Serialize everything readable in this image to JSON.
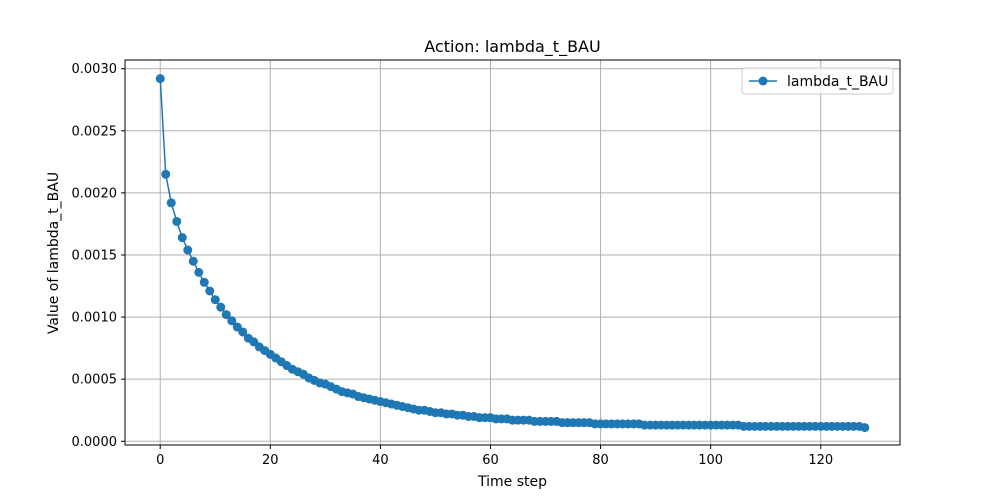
{
  "figure": {
    "title": "Action: lambda_t_BAU",
    "xlabel": "Time step",
    "ylabel": "Value of lambda_t_BAU",
    "legend_label": "lambda_t_BAU"
  },
  "chart_data": {
    "type": "line",
    "title": "Action: lambda_t_BAU",
    "xlabel": "Time step",
    "ylabel": "Value of lambda_t_BAU",
    "xlim": [
      -6.4,
      134.4
    ],
    "ylim": [
      -3e-05,
      0.00307
    ],
    "xticks": [
      0,
      20,
      40,
      60,
      80,
      100,
      120
    ],
    "xtick_labels": [
      "0",
      "20",
      "40",
      "60",
      "80",
      "100",
      "120"
    ],
    "yticks": [
      0.0,
      0.0005,
      0.001,
      0.0015,
      0.002,
      0.0025,
      0.003
    ],
    "ytick_labels": [
      "0.0000",
      "0.0005",
      "0.0010",
      "0.0015",
      "0.0020",
      "0.0025",
      "0.0030"
    ],
    "grid": true,
    "legend_position": "upper right",
    "series": [
      {
        "name": "lambda_t_BAU",
        "color": "#1f77b4",
        "marker": "circle",
        "x_start": 0,
        "x_step": 1,
        "values": [
          0.00292,
          0.00215,
          0.00192,
          0.00177,
          0.00164,
          0.00154,
          0.00145,
          0.00136,
          0.00128,
          0.00121,
          0.00114,
          0.00108,
          0.00102,
          0.00097,
          0.00092,
          0.00088,
          0.00083,
          0.0008,
          0.00076,
          0.00073,
          0.0007,
          0.00067,
          0.00064,
          0.00061,
          0.00058,
          0.00056,
          0.00054,
          0.00051,
          0.00049,
          0.00047,
          0.00046,
          0.00044,
          0.00042,
          0.0004,
          0.00039,
          0.00038,
          0.00036,
          0.00035,
          0.00034,
          0.00033,
          0.00032,
          0.00031,
          0.0003,
          0.00029,
          0.00028,
          0.00027,
          0.00026,
          0.00025,
          0.00025,
          0.00024,
          0.00023,
          0.00023,
          0.00022,
          0.00022,
          0.00021,
          0.00021,
          0.0002,
          0.0002,
          0.00019,
          0.00019,
          0.00019,
          0.00018,
          0.00018,
          0.00018,
          0.00017,
          0.00017,
          0.00017,
          0.00017,
          0.00016,
          0.00016,
          0.00016,
          0.00016,
          0.00016,
          0.00015,
          0.00015,
          0.00015,
          0.00015,
          0.00015,
          0.00015,
          0.00014,
          0.00014,
          0.00014,
          0.00014,
          0.00014,
          0.00014,
          0.00014,
          0.00014,
          0.00014,
          0.00013,
          0.00013,
          0.00013,
          0.00013,
          0.00013,
          0.00013,
          0.00013,
          0.00013,
          0.00013,
          0.00013,
          0.00013,
          0.00013,
          0.00013,
          0.00013,
          0.00013,
          0.00013,
          0.00013,
          0.00013,
          0.00012,
          0.00012,
          0.00012,
          0.00012,
          0.00012,
          0.00012,
          0.00012,
          0.00012,
          0.00012,
          0.00012,
          0.00012,
          0.00012,
          0.00012,
          0.00012,
          0.00012,
          0.00012,
          0.00012,
          0.00012,
          0.00012,
          0.00012,
          0.00012,
          0.00012,
          0.00011
        ]
      }
    ]
  }
}
